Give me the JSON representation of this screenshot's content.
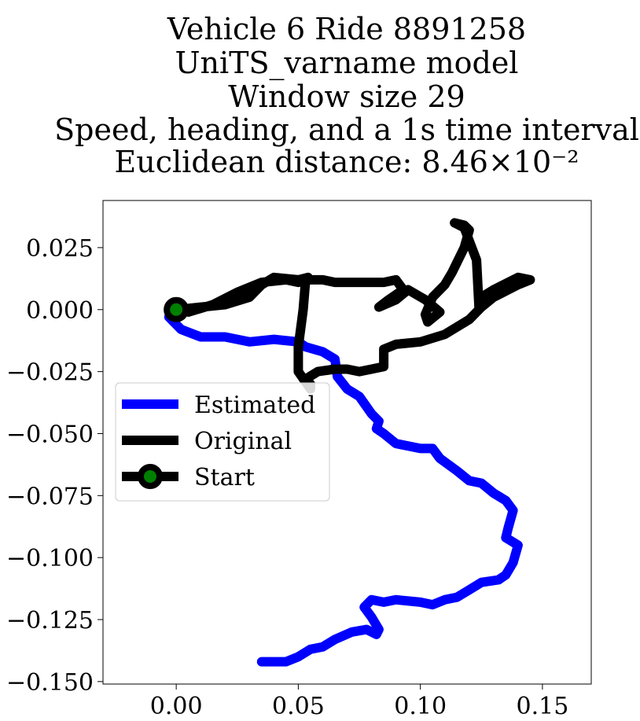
{
  "chart_data": {
    "type": "line",
    "title_lines": [
      "Vehicle 6 Ride 8891258",
      "UniTS_varname model",
      "Window size 29",
      "Speed, heading, and a 1s time interval",
      "Euclidean distance: 8.46×10⁻²"
    ],
    "xlabel": "",
    "ylabel": "",
    "xlim": [
      -0.03,
      0.17
    ],
    "ylim": [
      -0.151,
      0.044
    ],
    "grid": false,
    "legend_placement": "center-left",
    "x_ticks": [
      0.0,
      0.05,
      0.1,
      0.15
    ],
    "x_tick_labels": [
      "0.00",
      "0.05",
      "0.10",
      "0.15"
    ],
    "y_ticks": [
      0.025,
      0.0,
      -0.025,
      -0.05,
      -0.075,
      -0.1,
      -0.125,
      -0.15
    ],
    "y_tick_labels": [
      "0.025",
      "0.000",
      "−0.025",
      "−0.050",
      "−0.075",
      "−0.100",
      "−0.125",
      "−0.150"
    ],
    "series": [
      {
        "name": "Estimated",
        "color": "#0000ff",
        "x": [
          0.0,
          -0.003,
          0.002,
          0.01,
          0.02,
          0.03,
          0.04,
          0.05,
          0.053,
          0.06,
          0.065,
          0.066,
          0.07,
          0.075,
          0.08,
          0.083,
          0.082,
          0.085,
          0.09,
          0.1,
          0.105,
          0.108,
          0.115,
          0.12,
          0.125,
          0.13,
          0.135,
          0.138,
          0.136,
          0.135,
          0.14,
          0.138,
          0.135,
          0.132,
          0.125,
          0.12,
          0.115,
          0.11,
          0.105,
          0.1,
          0.09,
          0.085,
          0.08,
          0.077,
          0.08,
          0.083,
          0.082,
          0.078,
          0.072,
          0.065,
          0.06,
          0.055,
          0.05,
          0.045,
          0.04,
          0.035
        ],
        "y": [
          0.0,
          -0.003,
          -0.008,
          -0.011,
          -0.011,
          -0.013,
          -0.012,
          -0.013,
          -0.015,
          -0.017,
          -0.02,
          -0.027,
          -0.032,
          -0.035,
          -0.042,
          -0.045,
          -0.048,
          -0.05,
          -0.054,
          -0.056,
          -0.056,
          -0.06,
          -0.065,
          -0.069,
          -0.07,
          -0.074,
          -0.077,
          -0.081,
          -0.088,
          -0.092,
          -0.095,
          -0.102,
          -0.107,
          -0.109,
          -0.11,
          -0.113,
          -0.116,
          -0.117,
          -0.119,
          -0.118,
          -0.117,
          -0.118,
          -0.117,
          -0.12,
          -0.124,
          -0.129,
          -0.131,
          -0.129,
          -0.13,
          -0.133,
          -0.136,
          -0.137,
          -0.14,
          -0.142,
          -0.142,
          -0.142
        ]
      },
      {
        "name": "Original",
        "color": "#000000",
        "x": [
          0.0,
          0.01,
          0.02,
          0.03,
          0.035,
          0.04,
          0.05,
          0.054,
          0.053,
          0.052,
          0.05,
          0.05,
          0.055,
          0.055,
          0.053,
          0.058,
          0.065,
          0.07,
          0.075,
          0.08,
          0.085,
          0.085,
          0.09,
          0.1,
          0.11,
          0.12,
          0.125,
          0.13,
          0.14,
          0.145,
          0.14,
          0.13,
          0.125,
          0.124,
          0.123,
          0.118,
          0.114,
          0.118,
          0.12,
          0.118,
          0.113,
          0.11,
          0.105,
          0.102,
          0.103,
          0.108,
          0.102,
          0.095,
          0.09,
          0.083,
          0.087,
          0.093,
          0.09,
          0.085,
          0.075,
          0.065,
          0.06,
          0.055,
          0.05,
          0.045,
          0.035,
          0.025,
          0.015,
          0.005,
          0.0
        ],
        "y": [
          0.0,
          0.001,
          0.002,
          0.005,
          0.01,
          0.013,
          0.012,
          0.013,
          0.012,
          0.0,
          -0.015,
          -0.025,
          -0.032,
          -0.03,
          -0.028,
          -0.025,
          -0.024,
          -0.024,
          -0.025,
          -0.024,
          -0.023,
          -0.016,
          -0.014,
          -0.013,
          -0.01,
          -0.004,
          0.001,
          0.005,
          0.01,
          0.012,
          0.013,
          0.008,
          0.005,
          0.001,
          0.02,
          0.033,
          0.035,
          0.034,
          0.032,
          0.025,
          0.015,
          0.01,
          0.005,
          -0.002,
          -0.005,
          -0.001,
          0.004,
          0.008,
          0.004,
          0.001,
          0.004,
          0.008,
          0.012,
          0.011,
          0.011,
          0.011,
          0.012,
          0.012,
          0.011,
          0.012,
          0.011,
          0.007,
          0.002,
          -0.001,
          0.0
        ]
      }
    ],
    "start_point": {
      "name": "Start",
      "x": 0.0,
      "y": 0.0,
      "color": "#000000",
      "fill": "#008000"
    }
  }
}
